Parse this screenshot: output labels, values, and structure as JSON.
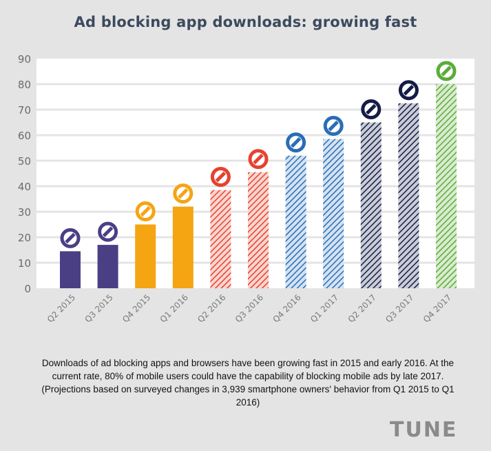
{
  "chart_data": {
    "type": "bar",
    "title": "Ad blocking app downloads: growing fast",
    "xlabel": "",
    "ylabel": "",
    "ylim": [
      0,
      90
    ],
    "yticks": [
      0,
      10,
      20,
      30,
      40,
      50,
      60,
      70,
      80,
      90
    ],
    "grid": true,
    "categories": [
      "Q2 2015",
      "Q3 2015",
      "Q4 2015",
      "Q1 2016",
      "Q2 2016",
      "Q3 2016",
      "Q4 2016",
      "Q1 2017",
      "Q2 2017",
      "Q3 2017",
      "Q4 2017"
    ],
    "values": [
      14.5,
      17,
      25,
      32,
      38.5,
      45.5,
      52,
      58.5,
      65,
      72.5,
      80
    ],
    "colors": [
      "#4a3f85",
      "#4a3f85",
      "#f5a412",
      "#f5a412",
      "#e8412f",
      "#e8412f",
      "#2a6db5",
      "#2a6db5",
      "#141c46",
      "#141c46",
      "#5aac3a"
    ],
    "hatched": [
      false,
      false,
      false,
      false,
      true,
      true,
      true,
      true,
      true,
      true,
      true
    ],
    "hatch_backgrounds": [
      "",
      "",
      "",
      "",
      "#f9d6cf",
      "#f9d6cf",
      "#d3e2f2",
      "#d3e2f2",
      "#c9ccd6",
      "#c9ccd6",
      "#d9ebcf"
    ],
    "marker_icon": "no-entry-icon"
  },
  "caption": "Downloads of ad blocking apps and browsers have been growing fast in 2015 and early 2016. At the current rate, 80% of mobile users could have the capability of blocking mobile ads by late 2017.(Projections based on surveyed changes in 3,939 smartphone owners' behavior from Q1 2015 to Q1 2016)",
  "logo": "TUNE",
  "colors": {
    "background": "#e4e4e4",
    "plot_background": "#ffffff",
    "gridline": "#e4e4e4",
    "axis_text": "#6b6b6b",
    "title": "#3b4a5e"
  }
}
